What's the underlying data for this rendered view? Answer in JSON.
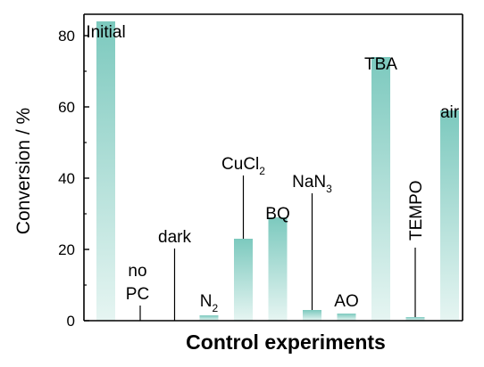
{
  "chart_data": {
    "type": "bar",
    "xlabel": "Control experiments",
    "ylabel": "Conversion / %",
    "ylim": [
      0,
      86
    ],
    "yticks": [
      0,
      20,
      40,
      60,
      80
    ],
    "categories": [
      {
        "label": "Initial",
        "value": 84
      },
      {
        "label": "no PC",
        "line1": "no",
        "line2": "PC",
        "value": 0
      },
      {
        "label": "dark",
        "value": 0
      },
      {
        "label": "N2",
        "text": "N",
        "sub": "2",
        "value": 1.5
      },
      {
        "label": "CuCl2",
        "text": "CuCl",
        "sub": "2",
        "value": 23
      },
      {
        "label": "BQ",
        "value": 29
      },
      {
        "label": "NaN3",
        "text": "NaN",
        "sub": "3",
        "value": 3
      },
      {
        "label": "AO",
        "value": 2
      },
      {
        "label": "TBA",
        "value": 74
      },
      {
        "label": "TEMPO",
        "value": 1
      },
      {
        "label": "air",
        "value": 59
      }
    ],
    "colors": {
      "bar_top": "#7cc9be",
      "bar_bottom": "#e6f5f2"
    },
    "grid": false,
    "legend": "none"
  }
}
